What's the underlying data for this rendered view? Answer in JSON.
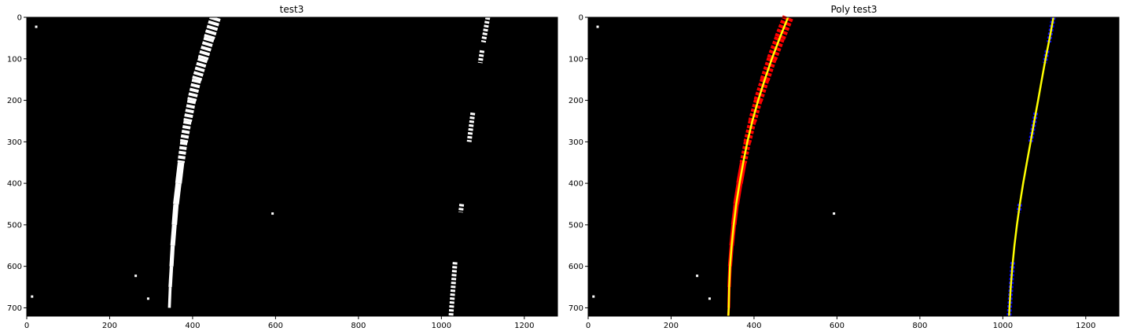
{
  "chart_data": [
    {
      "type": "image",
      "title": "test3",
      "xlim": [
        0,
        1280
      ],
      "ylim": [
        720,
        0
      ],
      "x_ticks": [
        0,
        200,
        400,
        600,
        800,
        1000,
        1200
      ],
      "y_ticks": [
        0,
        100,
        200,
        300,
        400,
        500,
        600,
        700
      ],
      "background": "#000000",
      "pixel_color": "#ffffff",
      "grid": false,
      "lane_pixels": {
        "left": [
          [
            455,
            0
          ],
          [
            440,
            50
          ],
          [
            425,
            100
          ],
          [
            410,
            150
          ],
          [
            398,
            200
          ],
          [
            388,
            250
          ],
          [
            379,
            300
          ],
          [
            372,
            350
          ],
          [
            366,
            400
          ],
          [
            360,
            450
          ],
          [
            356,
            500
          ],
          [
            352,
            550
          ],
          [
            349,
            600
          ],
          [
            346,
            650
          ],
          [
            344,
            700
          ]
        ],
        "right": [
          [
            1112,
            0
          ],
          [
            1103,
            50
          ],
          [
            1095,
            100
          ],
          [
            1088,
            150
          ],
          [
            1080,
            200
          ],
          [
            1073,
            250
          ],
          [
            1067,
            300
          ],
          [
            1061,
            350
          ],
          [
            1055,
            400
          ],
          [
            1049,
            450
          ],
          [
            1043,
            500
          ],
          [
            1037,
            550
          ],
          [
            1032,
            600
          ],
          [
            1027,
            650
          ],
          [
            1023,
            700
          ]
        ]
      }
    },
    {
      "type": "image",
      "title": "Poly test3",
      "xlim": [
        0,
        1280
      ],
      "ylim": [
        720,
        0
      ],
      "x_ticks": [
        0,
        200,
        400,
        600,
        800,
        1000,
        1200
      ],
      "y_ticks": [
        0,
        100,
        200,
        300,
        400,
        500,
        600,
        700
      ],
      "background": "#000000",
      "left_lane_color": "#ff0000",
      "right_lane_color": "#0000ff",
      "fit_color": "#ffff00",
      "grid": false,
      "fit_lines": {
        "left": [
          [
            482,
            0
          ],
          [
            462,
            50
          ],
          [
            443,
            100
          ],
          [
            426,
            150
          ],
          [
            410,
            200
          ],
          [
            396,
            250
          ],
          [
            384,
            300
          ],
          [
            374,
            350
          ],
          [
            365,
            400
          ],
          [
            357,
            450
          ],
          [
            351,
            500
          ],
          [
            346,
            550
          ],
          [
            342,
            600
          ],
          [
            340,
            650
          ],
          [
            339,
            700
          ],
          [
            338,
            720
          ]
        ],
        "right": [
          [
            1122,
            0
          ],
          [
            1113,
            50
          ],
          [
            1103,
            100
          ],
          [
            1094,
            150
          ],
          [
            1085,
            200
          ],
          [
            1076,
            250
          ],
          [
            1067,
            300
          ],
          [
            1058,
            350
          ],
          [
            1049,
            400
          ],
          [
            1041,
            450
          ],
          [
            1034,
            500
          ],
          [
            1028,
            550
          ],
          [
            1023,
            600
          ],
          [
            1019,
            650
          ],
          [
            1016,
            700
          ],
          [
            1015,
            720
          ]
        ]
      }
    }
  ]
}
